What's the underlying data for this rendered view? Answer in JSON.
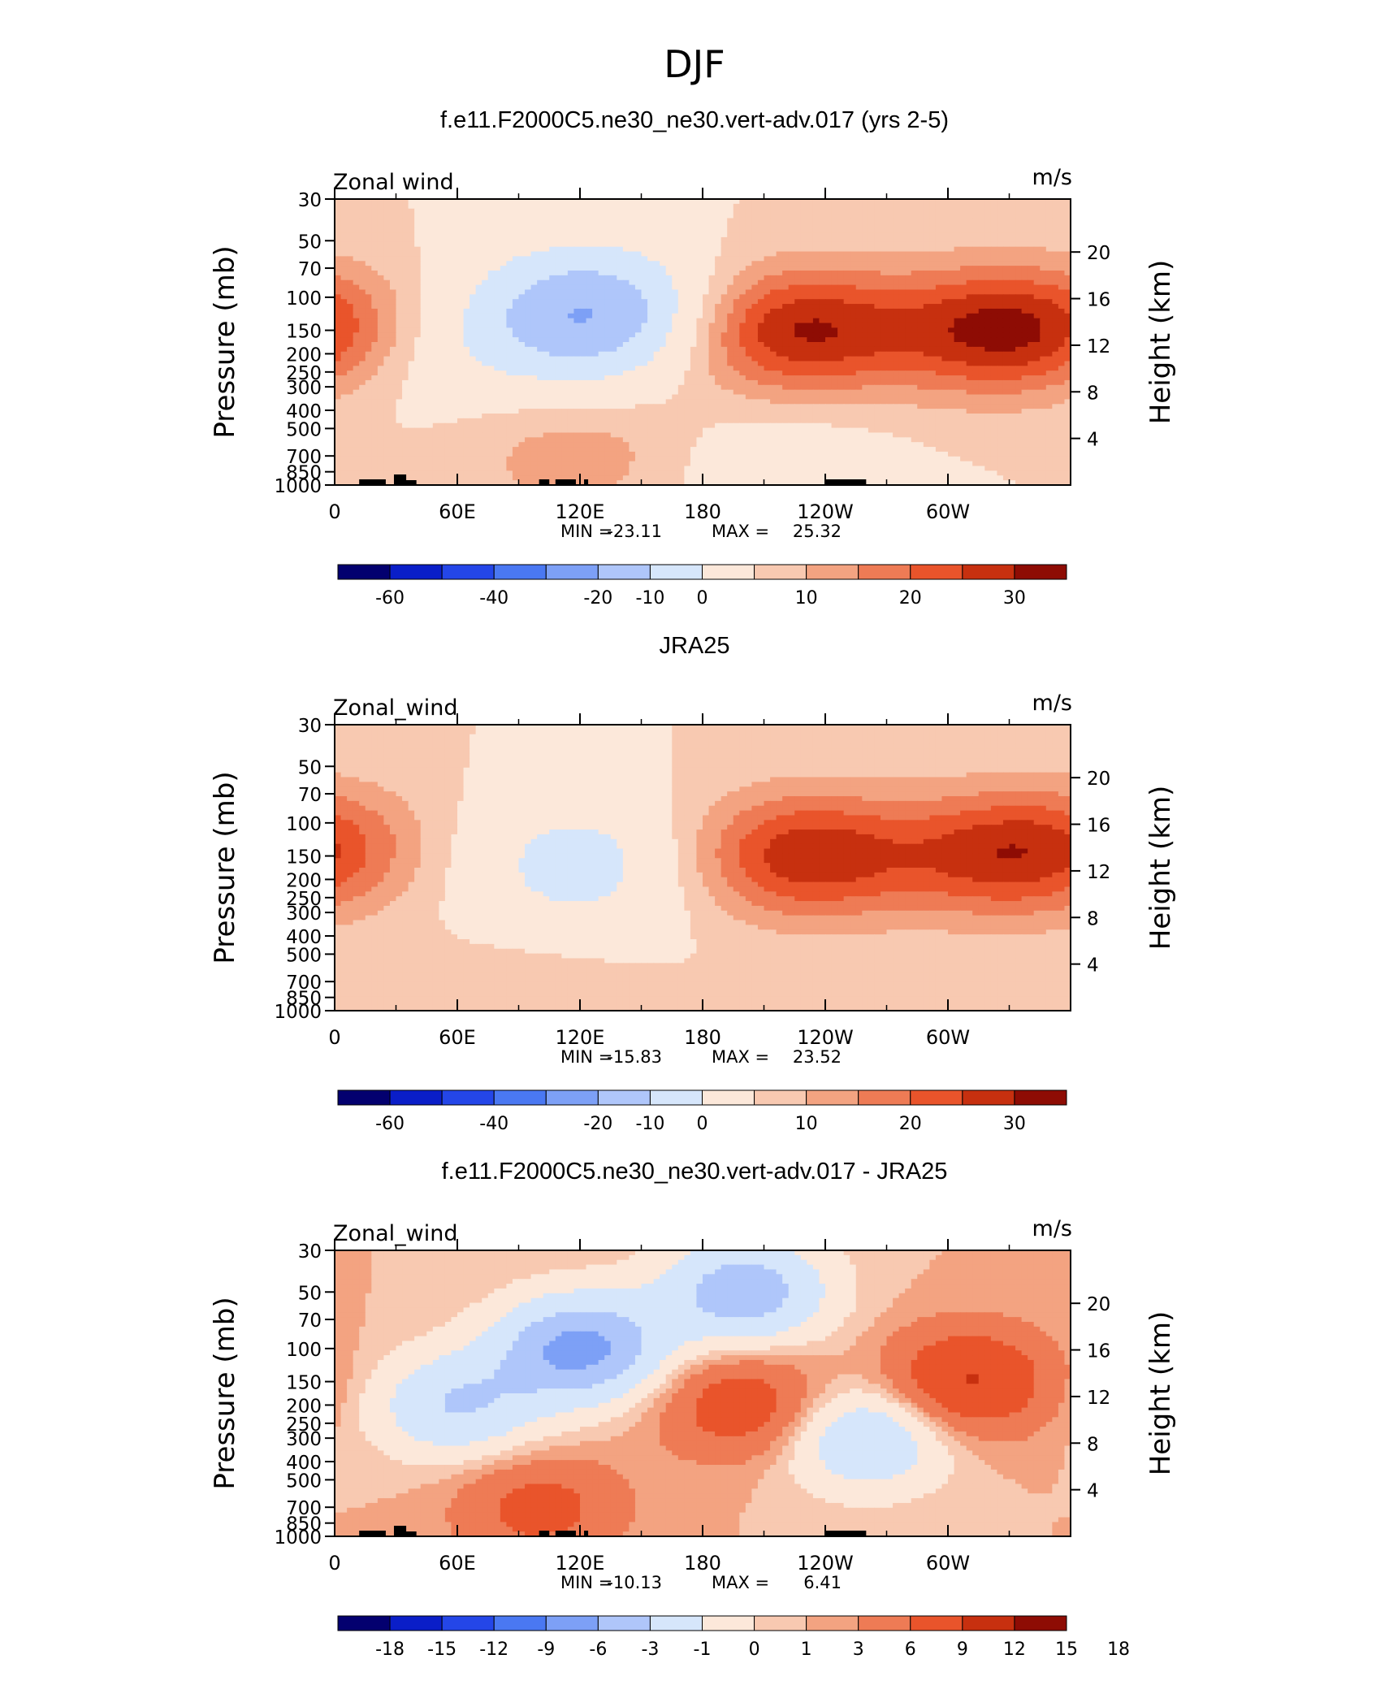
{
  "figure_title": "DJF",
  "chart_data": [
    {
      "type": "heatmap",
      "title": "f.e11.F2000C5.ne30_ne30.vert-adv.017 (yrs 2-5)",
      "left_label": "Zonal wind",
      "units": "m/s",
      "ylabel": "Pressure (mb)",
      "y2label": "Height (km)",
      "x_ticks": [
        "0",
        "60E",
        "120E",
        "180",
        "120W",
        "60W"
      ],
      "y_ticks": [
        "30",
        "50",
        "70",
        "100",
        "150",
        "200",
        "250",
        "300",
        "400",
        "500",
        "700",
        "850",
        "1000"
      ],
      "y2_ticks": [
        "20",
        "16",
        "12",
        "8",
        "4"
      ],
      "stats": {
        "min_label": "MIN",
        "min": "-23.11",
        "max_label": "MAX",
        "max": "25.32"
      },
      "colorbar_ticks": [
        "-60",
        "-40",
        "-20",
        "-10",
        "0",
        "10",
        "20",
        "30"
      ],
      "features": [
        {
          "lon": 125,
          "p": 110,
          "value": -20
        },
        {
          "lon": 125,
          "p": 150,
          "value": -12
        },
        {
          "lon": 45,
          "p": 200,
          "value": -6
        },
        {
          "lon": 225,
          "p": 150,
          "value": 25.32
        },
        {
          "lon": 325,
          "p": 150,
          "value": 22
        },
        {
          "lon": 120,
          "p": 700,
          "value": 8
        },
        {
          "lon": 0,
          "p": 150,
          "value": 8
        },
        {
          "lon": 215,
          "p": 850,
          "value": -6
        }
      ]
    },
    {
      "type": "heatmap",
      "title": "JRA25",
      "left_label": "Zonal_wind",
      "units": "m/s",
      "ylabel": "Pressure (mb)",
      "y2label": "Height (km)",
      "x_ticks": [
        "0",
        "60E",
        "120E",
        "180",
        "120W",
        "60W"
      ],
      "y_ticks": [
        "30",
        "50",
        "70",
        "100",
        "150",
        "200",
        "250",
        "300",
        "400",
        "500",
        "700",
        "850",
        "1000"
      ],
      "y2_ticks": [
        "20",
        "16",
        "12",
        "8",
        "4"
      ],
      "stats": {
        "min_label": "MIN",
        "min": "-15.83",
        "max_label": "MAX",
        "max": "23.52"
      },
      "colorbar_ticks": [
        "-60",
        "-40",
        "-20",
        "-10",
        "0",
        "10",
        "20",
        "30"
      ],
      "features": [
        {
          "lon": 120,
          "p": 150,
          "value": -12
        },
        {
          "lon": 120,
          "p": 300,
          "value": -4
        },
        {
          "lon": 230,
          "p": 150,
          "value": 23.52
        },
        {
          "lon": 330,
          "p": 150,
          "value": 20
        },
        {
          "lon": 100,
          "p": 800,
          "value": 5
        },
        {
          "lon": 0,
          "p": 120,
          "value": 6
        }
      ]
    },
    {
      "type": "heatmap",
      "title": "f.e11.F2000C5.ne30_ne30.vert-adv.017 - JRA25",
      "left_label": "Zonal_wind",
      "units": "m/s",
      "ylabel": "Pressure (mb)",
      "y2label": "Height (km)",
      "x_ticks": [
        "0",
        "60E",
        "120E",
        "180",
        "120W",
        "60W"
      ],
      "y_ticks": [
        "30",
        "50",
        "70",
        "100",
        "150",
        "200",
        "250",
        "300",
        "400",
        "500",
        "700",
        "850",
        "1000"
      ],
      "y2_ticks": [
        "20",
        "16",
        "12",
        "8",
        "4"
      ],
      "stats": {
        "min_label": "MIN",
        "min": "-10.13",
        "max_label": "MAX",
        "max": "6.41"
      },
      "colorbar_ticks": [
        "-18",
        "-15",
        "-12",
        "-9",
        "-6",
        "-3",
        "-1",
        "0",
        "1",
        "3",
        "6",
        "9",
        "12",
        "15",
        "18"
      ],
      "features": [
        {
          "lon": 120,
          "p": 100,
          "value": -10.13
        },
        {
          "lon": 200,
          "p": 50,
          "value": -8
        },
        {
          "lon": 60,
          "p": 200,
          "value": -6
        },
        {
          "lon": 260,
          "p": 300,
          "value": -6
        },
        {
          "lon": 200,
          "p": 200,
          "value": 5
        },
        {
          "lon": 310,
          "p": 150,
          "value": 6.41
        },
        {
          "lon": 100,
          "p": 700,
          "value": 4
        }
      ]
    }
  ],
  "colors": {
    "levels": [
      "#03006f",
      "#0a1ec8",
      "#2446e8",
      "#4a78f2",
      "#7da0f6",
      "#afc6fa",
      "#d6e6fb",
      "#fce8da",
      "#f8c9b1",
      "#f3a381",
      "#ee7b55",
      "#e9542b",
      "#c7300f",
      "#8e0c04"
    ]
  }
}
